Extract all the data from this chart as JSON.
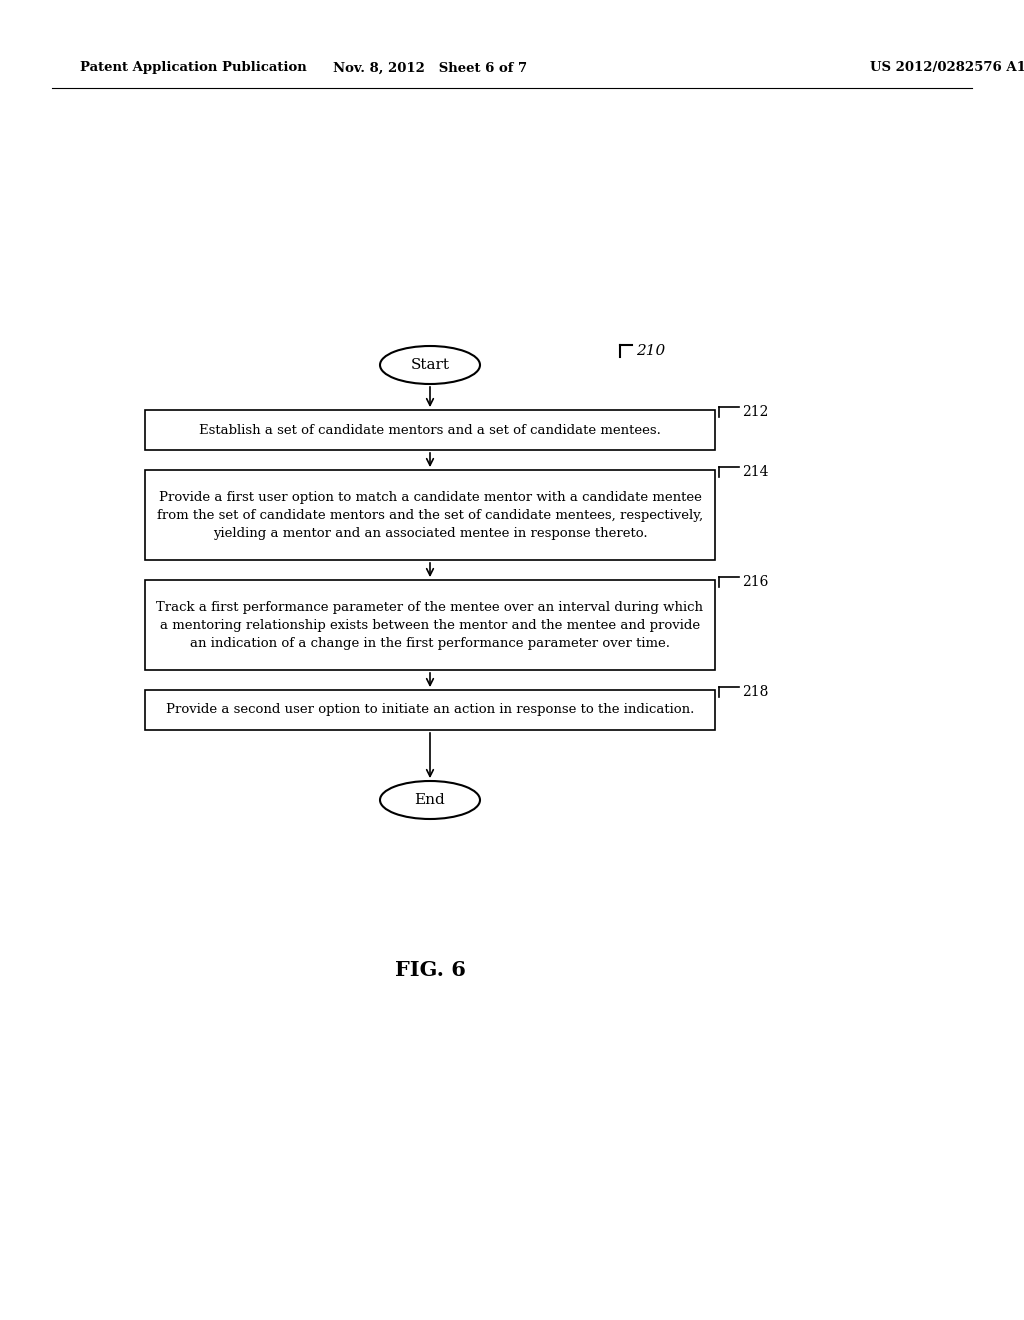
{
  "bg_color": "#ffffff",
  "header_left": "Patent Application Publication",
  "header_mid": "Nov. 8, 2012   Sheet 6 of 7",
  "header_right": "US 2012/0282576 A1",
  "figure_label": "FIG. 6",
  "flow_label": "210",
  "boxes": [
    {
      "label": "212",
      "text": "Establish a set of candidate mentors and a set of candidate mentees.",
      "lines": 1
    },
    {
      "label": "214",
      "text": "Provide a first user option to match a candidate mentor with a candidate mentee\nfrom the set of candidate mentors and the set of candidate mentees, respectively,\nyielding a mentor and an associated mentee in response thereto.",
      "lines": 3
    },
    {
      "label": "216",
      "text": "Track a first performance parameter of the mentee over an interval during which\na mentoring relationship exists between the mentor and the mentee and provide\nan indication of a change in the first performance parameter over time.",
      "lines": 3
    },
    {
      "label": "218",
      "text": "Provide a second user option to initiate an action in response to the indication.",
      "lines": 1
    }
  ],
  "font_size_box": 9.5,
  "font_size_header": 9.5,
  "font_size_label": 10,
  "font_size_figure": 15
}
